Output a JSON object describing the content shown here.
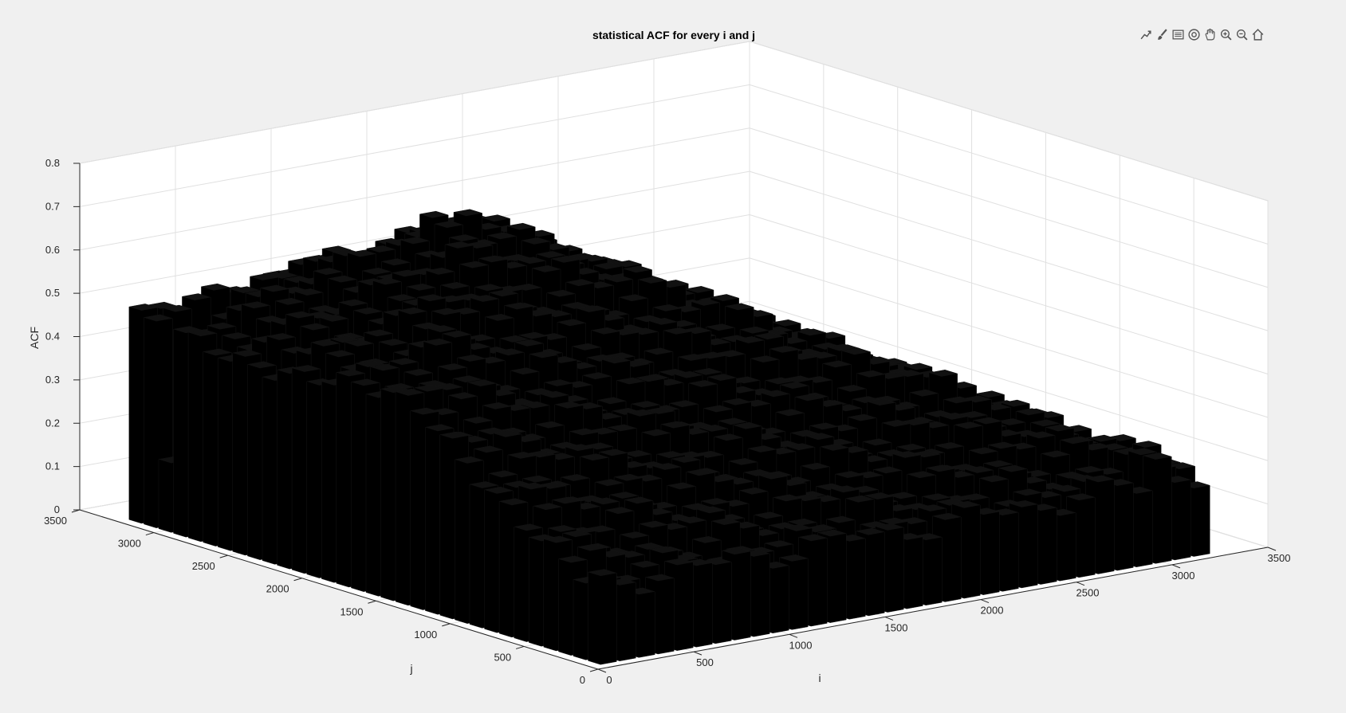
{
  "toolbar": {
    "icons": [
      "export-icon",
      "brush-icon",
      "legend-icon",
      "rotate-3d-icon",
      "pan-icon",
      "zoom-in-icon",
      "zoom-out-icon",
      "home-icon"
    ]
  },
  "colors": {
    "background": "#f0f0f0",
    "axes_face": "#ffffff",
    "grid": "#e0e0e0",
    "bars": "#000000",
    "text": "#262626"
  },
  "chart_data": {
    "type": "bar3",
    "title": "statistical ACF for every i and j",
    "xlabel": "i",
    "ylabel": "j",
    "zlabel": "ACF",
    "xlim": [
      0,
      3500
    ],
    "ylim": [
      0,
      3500
    ],
    "zlim": [
      0,
      0.8
    ],
    "xticks": [
      "0",
      "500",
      "1000",
      "1500",
      "2000",
      "2500",
      "3000",
      "3500"
    ],
    "yticks": [
      "0",
      "500",
      "1000",
      "1500",
      "2000",
      "2500",
      "3000",
      "3500"
    ],
    "zticks": [
      "0",
      "0.1",
      "0.2",
      "0.3",
      "0.4",
      "0.5",
      "0.6",
      "0.7",
      "0.8"
    ],
    "grid": true,
    "bar_spacing": 100,
    "i_range": [
      100,
      3200
    ],
    "j_range": [
      100,
      3200
    ],
    "edge_row_j_3000": [
      0.16,
      0.16,
      0.17,
      0.17,
      0.17,
      0.18,
      0.18,
      0.18,
      0.19,
      0.19,
      0.19,
      0.19,
      0.2,
      0.2,
      0.2,
      0.2,
      0.21,
      0.21,
      0.21,
      0.21,
      0.22,
      0.22,
      0.23,
      0.22,
      0.22,
      0.24,
      0.24,
      0.24,
      0.24,
      0.25
    ],
    "edge_row_i_3000": [
      0.24,
      0.24,
      0.23,
      0.23,
      0.22,
      0.22,
      0.21,
      0.22,
      0.21,
      0.2,
      0.2,
      0.2,
      0.19,
      0.19,
      0.19,
      0.18,
      0.18,
      0.18,
      0.17,
      0.17,
      0.17,
      0.17,
      0.16,
      0.16,
      0.16,
      0.15,
      0.15,
      0.14,
      0.14,
      0.14
    ],
    "peak_value": 0.71,
    "peak_location": {
      "i": 1100,
      "j": 2300
    }
  }
}
